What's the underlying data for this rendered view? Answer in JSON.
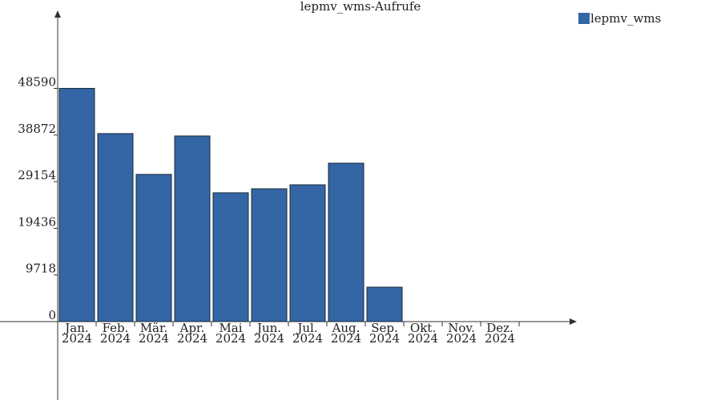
{
  "chart_data": {
    "type": "bar",
    "title": "lepmv_wms-Aufrufe",
    "categories": [
      "Jan. 2024",
      "Feb. 2024",
      "Mär. 2024",
      "Apr. 2024",
      "Mai 2024",
      "Jun. 2024",
      "Jul. 2024",
      "Aug. 2024",
      "Sep. 2024",
      "Okt. 2024",
      "Nov. 2024",
      "Dez. 2024"
    ],
    "series": [
      {
        "name": "lepmv_wms",
        "color": "#3465a4",
        "values": [
          48590,
          39170,
          30670,
          38670,
          26840,
          27670,
          28500,
          33000,
          7170,
          0,
          0,
          0
        ]
      }
    ],
    "ylim": [
      0,
      64500
    ],
    "yticks": [
      0,
      9718,
      19436,
      29154,
      38872,
      48590
    ],
    "legend": "top-right"
  }
}
